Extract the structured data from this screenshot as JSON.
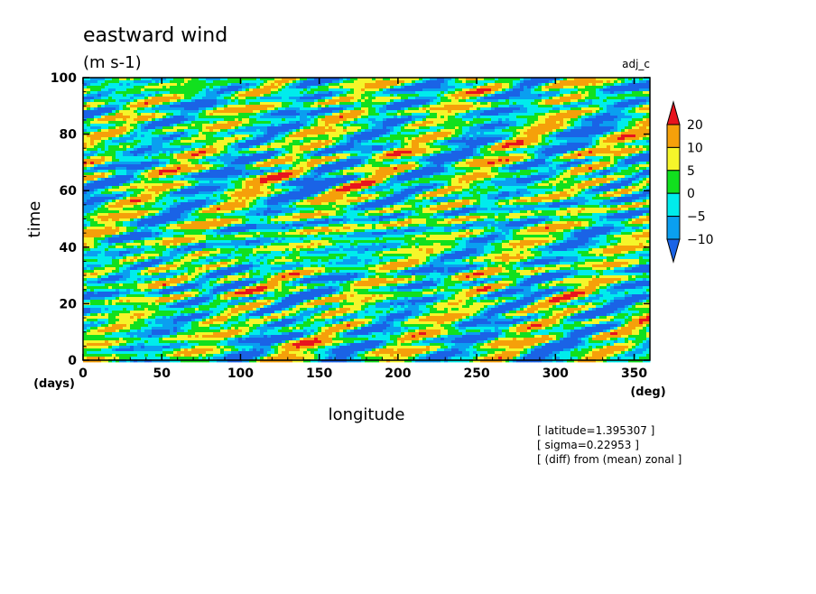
{
  "chart_data": {
    "type": "heatmap",
    "title": "eastward wind",
    "units": "(m s-1)",
    "experiment": "adj_c",
    "xlabel": "longitude",
    "ylabel": "time",
    "xunit": "(deg)",
    "yunit": "(days)",
    "xlim": [
      0,
      360
    ],
    "ylim": [
      0,
      100
    ],
    "xticks": [
      0,
      50,
      100,
      150,
      200,
      250,
      300,
      350
    ],
    "yticks": [
      0,
      20,
      40,
      60,
      80,
      100
    ],
    "colorbar": {
      "levels": [
        -10,
        -5,
        0,
        5,
        10,
        20
      ],
      "labels": [
        "20",
        "10",
        "5",
        "0",
        "−5",
        "−10"
      ],
      "colors": [
        "#1a63e6",
        "#0a9ff0",
        "#00ecec",
        "#11e01e",
        "#f5f52a",
        "#f5a00a",
        "#e8141e"
      ]
    },
    "notes": [
      "[ latitude=1.395307 ]",
      "[ sigma=0.22953 ]",
      "[ (diff) from (mean) zonal ]"
    ]
  }
}
